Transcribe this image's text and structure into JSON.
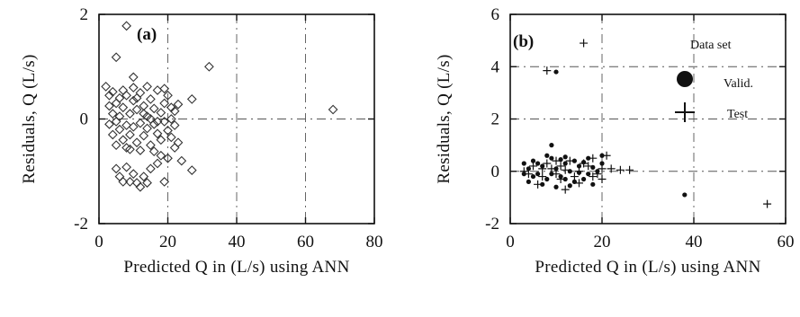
{
  "chart_data": [
    {
      "type": "scatter",
      "panel_label": "(a)",
      "xlabel": "Predicted Q in (L/s) using ANN",
      "ylabel": "Residuals, Q (L/s)",
      "xlim": [
        0,
        80
      ],
      "ylim": [
        -2.0,
        2.0
      ],
      "x_ticks": [
        0,
        20,
        40,
        60,
        80
      ],
      "y_ticks": [
        -2,
        0,
        2
      ],
      "grid": true,
      "marker": "diamond",
      "series": [
        {
          "points": [
            [
              8,
              1.78
            ],
            [
              5,
              1.18
            ],
            [
              10,
              0.8
            ],
            [
              32,
              1.0
            ],
            [
              27,
              0.38
            ],
            [
              68,
              0.18
            ],
            [
              2,
              0.62
            ],
            [
              3,
              0.45
            ],
            [
              4,
              0.52
            ],
            [
              5,
              0.3
            ],
            [
              6,
              0.4
            ],
            [
              7,
              0.22
            ],
            [
              8,
              0.45
            ],
            [
              9,
              0.1
            ],
            [
              10,
              0.35
            ],
            [
              11,
              0.18
            ],
            [
              12,
              0.5
            ],
            [
              13,
              0.25
            ],
            [
              14,
              0.05
            ],
            [
              15,
              0.38
            ],
            [
              16,
              0.2
            ],
            [
              17,
              0.55
            ],
            [
              18,
              0.12
            ],
            [
              19,
              0.3
            ],
            [
              20,
              0.45
            ],
            [
              21,
              0.0
            ],
            [
              22,
              0.15
            ],
            [
              23,
              0.28
            ],
            [
              3,
              -0.1
            ],
            [
              4,
              -0.3
            ],
            [
              5,
              -0.05
            ],
            [
              6,
              -0.2
            ],
            [
              7,
              -0.4
            ],
            [
              8,
              -0.12
            ],
            [
              9,
              -0.3
            ],
            [
              10,
              -0.15
            ],
            [
              11,
              -0.45
            ],
            [
              12,
              -0.08
            ],
            [
              13,
              -0.32
            ],
            [
              14,
              -0.18
            ],
            [
              15,
              -0.5
            ],
            [
              16,
              -0.1
            ],
            [
              17,
              -0.28
            ],
            [
              18,
              -0.4
            ],
            [
              19,
              -0.05
            ],
            [
              20,
              -0.22
            ],
            [
              21,
              -0.35
            ],
            [
              22,
              -0.12
            ],
            [
              23,
              -0.45
            ],
            [
              4,
              0.1
            ],
            [
              6,
              0.05
            ],
            [
              8,
              -0.55
            ],
            [
              10,
              0.6
            ],
            [
              12,
              -0.6
            ],
            [
              14,
              0.62
            ],
            [
              16,
              -0.62
            ],
            [
              3,
              0.25
            ],
            [
              5,
              -0.5
            ],
            [
              7,
              0.55
            ],
            [
              9,
              -0.58
            ],
            [
              11,
              0.4
            ],
            [
              13,
              0.1
            ],
            [
              15,
              0.0
            ],
            [
              17,
              -0.05
            ],
            [
              19,
              0.58
            ],
            [
              21,
              0.22
            ],
            [
              22,
              -0.55
            ],
            [
              5,
              -0.95
            ],
            [
              6,
              -1.1
            ],
            [
              7,
              -1.2
            ],
            [
              8,
              -0.92
            ],
            [
              9,
              -1.2
            ],
            [
              10,
              -1.05
            ],
            [
              11,
              -1.22
            ],
            [
              12,
              -1.3
            ],
            [
              13,
              -1.1
            ],
            [
              14,
              -1.22
            ],
            [
              15,
              -0.95
            ],
            [
              17,
              -0.85
            ],
            [
              18,
              -0.7
            ],
            [
              19,
              -1.2
            ],
            [
              20,
              -0.75
            ],
            [
              24,
              -0.8
            ],
            [
              27,
              -0.98
            ]
          ]
        }
      ]
    },
    {
      "type": "scatter",
      "panel_label": "(b)",
      "xlabel": "Predicted Q in (L/s) using ANN",
      "ylabel": "Residuals, Q (L/s)",
      "xlim": [
        0,
        60
      ],
      "ylim": [
        -2.0,
        6.0
      ],
      "x_ticks": [
        0,
        20,
        40,
        60
      ],
      "y_ticks": [
        -2,
        0,
        2,
        4,
        6
      ],
      "grid": true,
      "legend": {
        "title": "Data set",
        "placement": "top-right",
        "entries": [
          "Valid.",
          "Test"
        ]
      },
      "series": [
        {
          "name": "Valid.",
          "marker": "dot",
          "points": [
            [
              10,
              3.8
            ],
            [
              38,
              -0.9
            ],
            [
              9,
              1.0
            ],
            [
              3,
              0.3
            ],
            [
              4,
              0.1
            ],
            [
              5,
              0.4
            ],
            [
              6,
              -0.1
            ],
            [
              7,
              0.2
            ],
            [
              8,
              -0.3
            ],
            [
              9,
              0.5
            ],
            [
              10,
              0.1
            ],
            [
              11,
              -0.2
            ],
            [
              12,
              0.3
            ],
            [
              13,
              0.0
            ],
            [
              14,
              -0.4
            ],
            [
              15,
              0.2
            ],
            [
              16,
              0.35
            ],
            [
              17,
              -0.1
            ],
            [
              18,
              0.15
            ],
            [
              19,
              0.0
            ],
            [
              20,
              0.3
            ],
            [
              4,
              -0.4
            ],
            [
              6,
              0.3
            ],
            [
              8,
              0.6
            ],
            [
              10,
              -0.6
            ],
            [
              12,
              0.55
            ],
            [
              14,
              0.4
            ],
            [
              16,
              -0.3
            ],
            [
              5,
              -0.2
            ],
            [
              7,
              -0.5
            ],
            [
              9,
              -0.1
            ],
            [
              11,
              0.45
            ],
            [
              13,
              -0.55
            ],
            [
              15,
              -0.05
            ],
            [
              17,
              0.5
            ],
            [
              3,
              -0.1
            ],
            [
              12,
              -0.3
            ],
            [
              18,
              -0.5
            ],
            [
              20,
              0.6
            ]
          ]
        },
        {
          "name": "Test",
          "marker": "plus",
          "points": [
            [
              16,
              4.9
            ],
            [
              8,
              3.85
            ],
            [
              56,
              -1.25
            ],
            [
              26,
              0.05
            ],
            [
              21,
              0.6
            ],
            [
              3,
              0.0
            ],
            [
              5,
              0.2
            ],
            [
              7,
              -0.2
            ],
            [
              9,
              0.1
            ],
            [
              11,
              -0.3
            ],
            [
              13,
              0.4
            ],
            [
              15,
              0.0
            ],
            [
              17,
              0.2
            ],
            [
              19,
              -0.1
            ],
            [
              6,
              -0.5
            ],
            [
              8,
              0.3
            ],
            [
              10,
              -0.1
            ],
            [
              12,
              0.05
            ],
            [
              14,
              -0.2
            ],
            [
              18,
              0.5
            ],
            [
              20,
              0.1
            ],
            [
              4,
              -0.1
            ],
            [
              10,
              0.4
            ],
            [
              12,
              -0.7
            ],
            [
              16,
              0.3
            ],
            [
              18,
              -0.2
            ],
            [
              22,
              0.1
            ],
            [
              24,
              0.05
            ],
            [
              7,
              0.1
            ],
            [
              11,
              0.2
            ],
            [
              15,
              -0.45
            ],
            [
              20,
              -0.3
            ]
          ]
        }
      ]
    }
  ]
}
